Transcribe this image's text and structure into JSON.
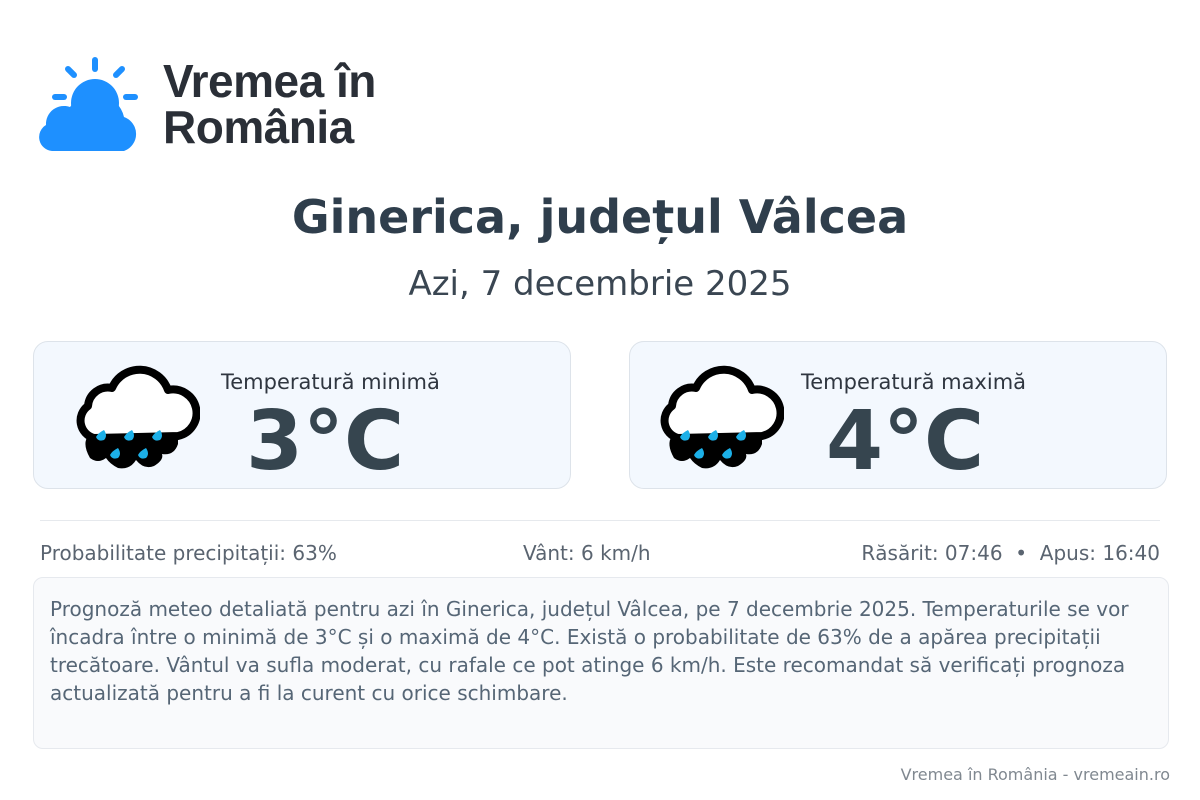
{
  "brand": {
    "name": "Vremea în România",
    "line1": "Vremea în",
    "line2": "România",
    "color": "#1e90ff"
  },
  "header": {
    "title": "Ginerica, județul Vâlcea",
    "subtitle": "Azi, 7 decembrie 2025"
  },
  "cards": [
    {
      "label": "Temperatură minimă",
      "value": "3°C",
      "icon": "rain-cloud-icon"
    },
    {
      "label": "Temperatură maximă",
      "value": "4°C",
      "icon": "rain-cloud-icon"
    }
  ],
  "stats": {
    "precipitation": "Probabilitate precipitații: 63%",
    "wind": "Vânt: 6 km/h",
    "sun": "Răsărit: 07:46  •  Apus: 16:40"
  },
  "description": "Prognoză meteo detaliată pentru azi în Ginerica, județul Vâlcea, pe 7 decembrie 2025. Temperaturile se vor încadra între o minimă de 3°C și o maximă de 4°C. Există o probabilitate de 63% de a apărea precipitații trecătoare. Vântul va sufla moderat, cu rafale ce pot atinge 6 km/h. Este recomandat să verificați prognoza actualizată pentru a fi la curent cu orice schimbare.",
  "footer": "Vremea în România - vremeain.ro"
}
